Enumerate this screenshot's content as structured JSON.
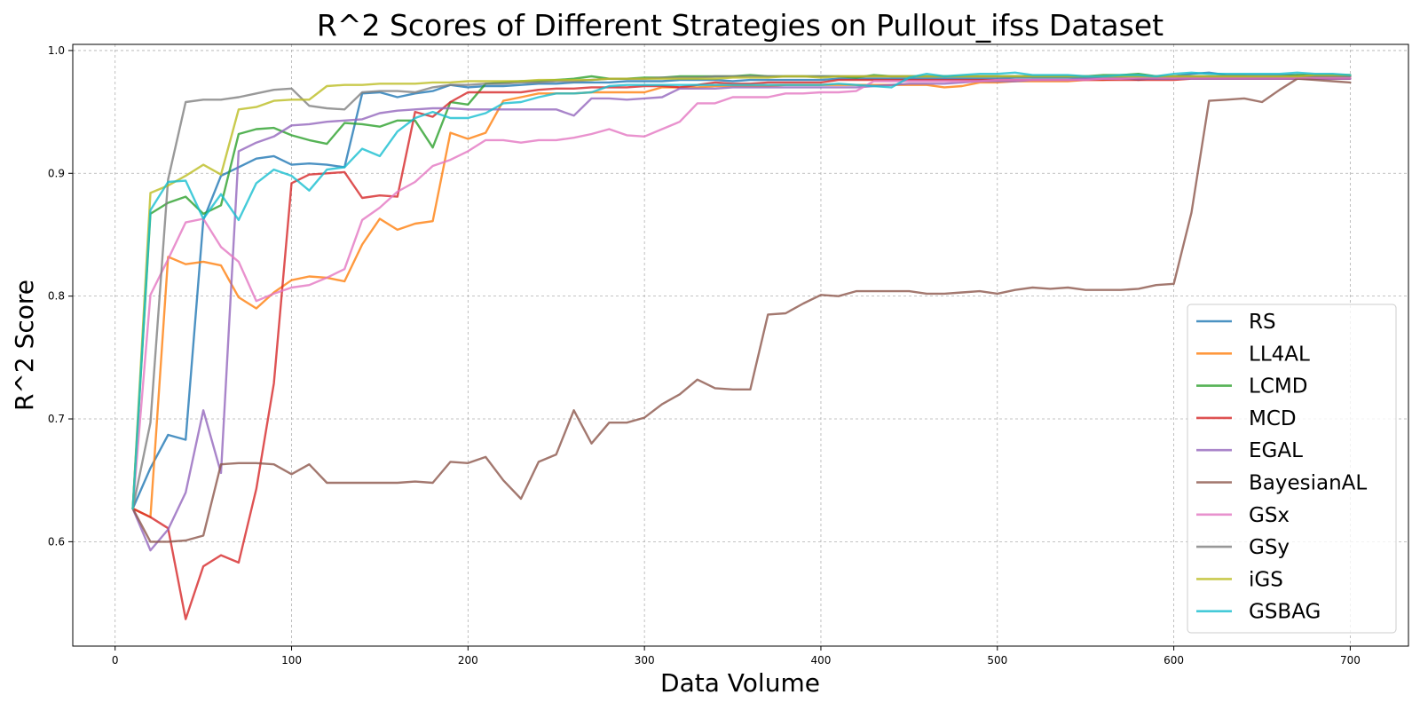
{
  "chart_data": {
    "type": "line",
    "title": "R^2 Scores of Different Strategies on Pullout_ifss Dataset",
    "xlabel": "Data Volume",
    "ylabel": "R^2 Score",
    "xlim": [
      -24,
      733
    ],
    "ylim": [
      0.515,
      1.005
    ],
    "xticks": [
      0,
      100,
      200,
      300,
      400,
      500,
      600,
      700
    ],
    "yticks": [
      0.6,
      0.7,
      0.8,
      0.9,
      1.0
    ],
    "ytick_labels": [
      "0.6",
      "0.7",
      "0.8",
      "0.9",
      "1.0"
    ],
    "grid": true,
    "legend_position": "lower-right",
    "x": [
      10,
      20,
      30,
      40,
      50,
      60,
      70,
      80,
      90,
      100,
      110,
      120,
      130,
      140,
      150,
      160,
      170,
      180,
      190,
      200,
      210,
      220,
      230,
      240,
      250,
      260,
      270,
      280,
      290,
      300,
      310,
      320,
      330,
      340,
      350,
      360,
      370,
      380,
      390,
      400,
      410,
      420,
      430,
      440,
      450,
      460,
      470,
      480,
      490,
      500,
      510,
      520,
      530,
      540,
      550,
      560,
      570,
      580,
      590,
      600,
      610,
      620,
      630,
      640,
      650,
      660,
      670,
      680,
      690,
      700
    ],
    "series": [
      {
        "name": "RS",
        "color": "#1f77b4",
        "values": [
          0.627,
          0.66,
          0.687,
          0.683,
          0.862,
          0.898,
          0.905,
          0.912,
          0.914,
          0.907,
          0.908,
          0.907,
          0.905,
          0.965,
          0.966,
          0.962,
          0.965,
          0.967,
          0.972,
          0.97,
          0.971,
          0.971,
          0.972,
          0.973,
          0.973,
          0.974,
          0.974,
          0.974,
          0.975,
          0.975,
          0.975,
          0.976,
          0.976,
          0.976,
          0.975,
          0.976,
          0.976,
          0.976,
          0.976,
          0.976,
          0.977,
          0.977,
          0.977,
          0.977,
          0.977,
          0.977,
          0.977,
          0.977,
          0.977,
          0.977,
          0.978,
          0.978,
          0.978,
          0.978,
          0.978,
          0.978,
          0.978,
          0.976,
          0.978,
          0.979,
          0.981,
          0.982,
          0.98,
          0.98,
          0.98,
          0.98,
          0.98,
          0.98,
          0.98,
          0.979
        ]
      },
      {
        "name": "LL4AL",
        "color": "#ff7f0e",
        "values": [
          0.627,
          0.62,
          0.832,
          0.826,
          0.828,
          0.825,
          0.799,
          0.79,
          0.803,
          0.813,
          0.816,
          0.815,
          0.812,
          0.842,
          0.863,
          0.854,
          0.859,
          0.861,
          0.933,
          0.928,
          0.933,
          0.959,
          0.962,
          0.965,
          0.965,
          0.965,
          0.966,
          0.966,
          0.966,
          0.966,
          0.97,
          0.97,
          0.97,
          0.971,
          0.971,
          0.971,
          0.971,
          0.972,
          0.972,
          0.972,
          0.972,
          0.972,
          0.972,
          0.972,
          0.972,
          0.972,
          0.97,
          0.971,
          0.974,
          0.974,
          0.975,
          0.975,
          0.975,
          0.975,
          0.976,
          0.976,
          0.977,
          0.977,
          0.977,
          0.978,
          0.978,
          0.978,
          0.978,
          0.978,
          0.978,
          0.978,
          0.979,
          0.979,
          0.979,
          0.979
        ]
      },
      {
        "name": "LCMD",
        "color": "#2ca02c",
        "values": [
          0.627,
          0.867,
          0.876,
          0.881,
          0.867,
          0.874,
          0.932,
          0.936,
          0.937,
          0.931,
          0.927,
          0.924,
          0.941,
          0.94,
          0.938,
          0.943,
          0.943,
          0.921,
          0.958,
          0.956,
          0.973,
          0.974,
          0.975,
          0.975,
          0.976,
          0.977,
          0.979,
          0.977,
          0.977,
          0.978,
          0.978,
          0.979,
          0.979,
          0.979,
          0.979,
          0.98,
          0.979,
          0.979,
          0.979,
          0.979,
          0.979,
          0.978,
          0.98,
          0.979,
          0.979,
          0.979,
          0.979,
          0.979,
          0.979,
          0.979,
          0.979,
          0.979,
          0.979,
          0.979,
          0.979,
          0.98,
          0.98,
          0.981,
          0.979,
          0.979,
          0.979,
          0.979,
          0.979,
          0.979,
          0.978,
          0.979,
          0.98,
          0.98,
          0.98,
          0.98
        ]
      },
      {
        "name": "MCD",
        "color": "#d62728",
        "values": [
          0.627,
          0.62,
          0.611,
          0.537,
          0.58,
          0.589,
          0.583,
          0.643,
          0.729,
          0.892,
          0.899,
          0.9,
          0.901,
          0.88,
          0.882,
          0.881,
          0.95,
          0.946,
          0.958,
          0.966,
          0.966,
          0.966,
          0.966,
          0.968,
          0.969,
          0.969,
          0.97,
          0.97,
          0.97,
          0.971,
          0.971,
          0.97,
          0.972,
          0.974,
          0.973,
          0.973,
          0.974,
          0.974,
          0.974,
          0.974,
          0.976,
          0.976,
          0.976,
          0.976,
          0.976,
          0.976,
          0.976,
          0.976,
          0.976,
          0.976,
          0.976,
          0.976,
          0.976,
          0.976,
          0.976,
          0.976,
          0.976,
          0.976,
          0.976,
          0.976,
          0.977,
          0.977,
          0.977,
          0.977,
          0.977,
          0.977,
          0.977,
          0.977,
          0.977,
          0.977
        ]
      },
      {
        "name": "EGAL",
        "color": "#9467bd",
        "values": [
          0.627,
          0.593,
          0.61,
          0.64,
          0.707,
          0.656,
          0.918,
          0.925,
          0.93,
          0.939,
          0.94,
          0.942,
          0.943,
          0.944,
          0.949,
          0.951,
          0.952,
          0.953,
          0.953,
          0.952,
          0.952,
          0.952,
          0.952,
          0.952,
          0.952,
          0.947,
          0.961,
          0.961,
          0.96,
          0.961,
          0.962,
          0.969,
          0.969,
          0.969,
          0.97,
          0.97,
          0.97,
          0.97,
          0.97,
          0.97,
          0.97,
          0.97,
          0.971,
          0.972,
          0.973,
          0.973,
          0.973,
          0.974,
          0.975,
          0.975,
          0.975,
          0.976,
          0.976,
          0.976,
          0.977,
          0.977,
          0.977,
          0.977,
          0.977,
          0.977,
          0.977,
          0.977,
          0.977,
          0.977,
          0.977,
          0.977,
          0.977,
          0.977,
          0.977,
          0.977
        ]
      },
      {
        "name": "BayesianAL",
        "color": "#8c564b",
        "values": [
          0.627,
          0.6,
          0.6,
          0.601,
          0.605,
          0.663,
          0.664,
          0.664,
          0.663,
          0.655,
          0.663,
          0.648,
          0.648,
          0.648,
          0.648,
          0.648,
          0.649,
          0.648,
          0.665,
          0.664,
          0.669,
          0.65,
          0.635,
          0.665,
          0.671,
          0.707,
          0.68,
          0.697,
          0.697,
          0.701,
          0.712,
          0.72,
          0.732,
          0.725,
          0.724,
          0.724,
          0.785,
          0.786,
          0.794,
          0.801,
          0.8,
          0.804,
          0.804,
          0.804,
          0.804,
          0.802,
          0.802,
          0.803,
          0.804,
          0.802,
          0.805,
          0.807,
          0.806,
          0.807,
          0.805,
          0.805,
          0.805,
          0.806,
          0.809,
          0.81,
          0.868,
          0.959,
          0.96,
          0.961,
          0.958,
          0.968,
          0.977,
          0.976,
          0.975,
          0.974
        ]
      },
      {
        "name": "GSx",
        "color": "#e377c2",
        "values": [
          0.627,
          0.801,
          0.83,
          0.86,
          0.863,
          0.84,
          0.828,
          0.796,
          0.802,
          0.807,
          0.809,
          0.815,
          0.822,
          0.862,
          0.872,
          0.885,
          0.893,
          0.906,
          0.911,
          0.918,
          0.927,
          0.927,
          0.925,
          0.927,
          0.927,
          0.929,
          0.932,
          0.936,
          0.931,
          0.93,
          0.936,
          0.942,
          0.957,
          0.957,
          0.962,
          0.962,
          0.962,
          0.965,
          0.965,
          0.966,
          0.966,
          0.967,
          0.975,
          0.975,
          0.975,
          0.975,
          0.975,
          0.975,
          0.975,
          0.976,
          0.976,
          0.976,
          0.976,
          0.976,
          0.976,
          0.977,
          0.977,
          0.978,
          0.978,
          0.978,
          0.978,
          0.978,
          0.978,
          0.978,
          0.978,
          0.978,
          0.978,
          0.978,
          0.978,
          0.978
        ]
      },
      {
        "name": "GSy",
        "color": "#7f7f7f",
        "values": [
          0.627,
          0.697,
          0.895,
          0.958,
          0.96,
          0.96,
          0.962,
          0.965,
          0.968,
          0.969,
          0.955,
          0.953,
          0.952,
          0.966,
          0.967,
          0.967,
          0.966,
          0.97,
          0.972,
          0.972,
          0.973,
          0.973,
          0.974,
          0.974,
          0.975,
          0.975,
          0.976,
          0.977,
          0.977,
          0.977,
          0.978,
          0.978,
          0.978,
          0.979,
          0.979,
          0.979,
          0.979,
          0.979,
          0.979,
          0.979,
          0.979,
          0.979,
          0.979,
          0.979,
          0.979,
          0.979,
          0.979,
          0.979,
          0.979,
          0.979,
          0.979,
          0.979,
          0.979,
          0.979,
          0.979,
          0.979,
          0.979,
          0.979,
          0.979,
          0.979,
          0.979,
          0.979,
          0.979,
          0.979,
          0.979,
          0.979,
          0.979,
          0.979,
          0.979,
          0.979
        ]
      },
      {
        "name": "iGS",
        "color": "#bcbd22",
        "values": [
          0.627,
          0.884,
          0.89,
          0.898,
          0.907,
          0.899,
          0.952,
          0.954,
          0.959,
          0.96,
          0.96,
          0.971,
          0.972,
          0.972,
          0.973,
          0.973,
          0.973,
          0.974,
          0.974,
          0.975,
          0.975,
          0.975,
          0.975,
          0.976,
          0.976,
          0.976,
          0.976,
          0.977,
          0.977,
          0.977,
          0.977,
          0.977,
          0.977,
          0.977,
          0.978,
          0.978,
          0.978,
          0.979,
          0.979,
          0.978,
          0.979,
          0.979,
          0.979,
          0.979,
          0.979,
          0.979,
          0.979,
          0.979,
          0.979,
          0.979,
          0.979,
          0.979,
          0.979,
          0.979,
          0.979,
          0.979,
          0.979,
          0.979,
          0.979,
          0.979,
          0.979,
          0.979,
          0.979,
          0.979,
          0.979,
          0.979,
          0.979,
          0.98,
          0.98,
          0.98
        ]
      },
      {
        "name": "GSBAG",
        "color": "#17becf",
        "values": [
          0.627,
          0.87,
          0.893,
          0.894,
          0.863,
          0.883,
          0.862,
          0.892,
          0.903,
          0.898,
          0.886,
          0.903,
          0.905,
          0.92,
          0.914,
          0.934,
          0.945,
          0.95,
          0.945,
          0.945,
          0.949,
          0.957,
          0.958,
          0.962,
          0.965,
          0.965,
          0.966,
          0.971,
          0.972,
          0.972,
          0.972,
          0.972,
          0.972,
          0.972,
          0.972,
          0.972,
          0.972,
          0.972,
          0.972,
          0.972,
          0.973,
          0.972,
          0.971,
          0.97,
          0.978,
          0.981,
          0.979,
          0.98,
          0.981,
          0.981,
          0.982,
          0.98,
          0.98,
          0.98,
          0.979,
          0.979,
          0.98,
          0.98,
          0.979,
          0.981,
          0.982,
          0.981,
          0.981,
          0.981,
          0.981,
          0.981,
          0.982,
          0.981,
          0.981,
          0.98
        ]
      }
    ]
  }
}
